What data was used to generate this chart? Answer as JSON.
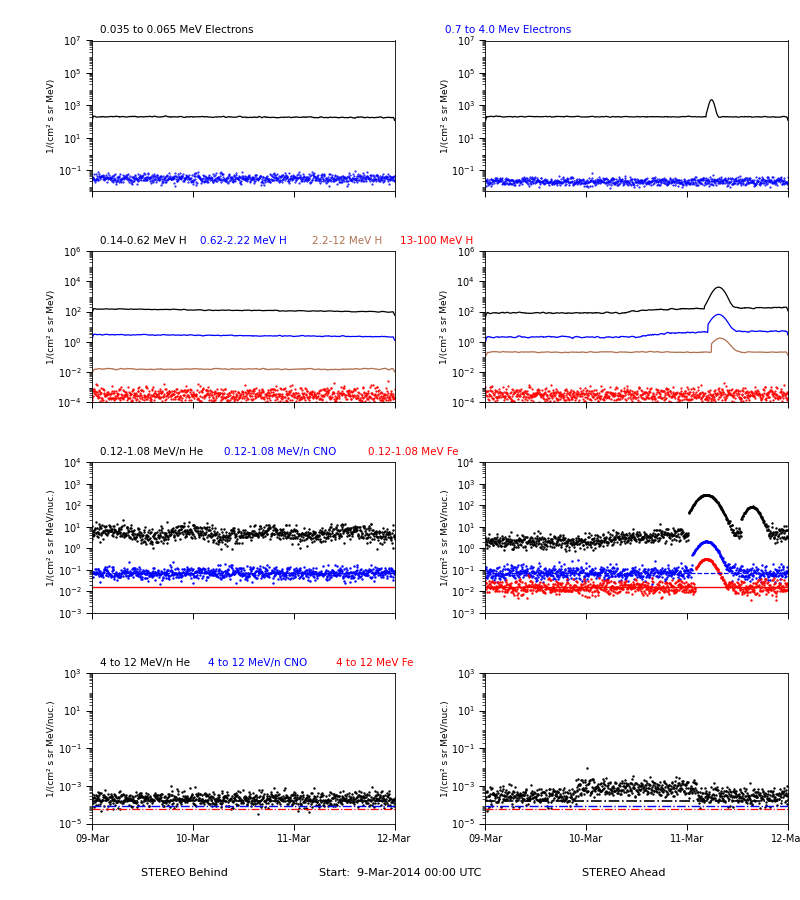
{
  "title_bottom": "Start:  9-Mar-2014 00:00 UTC",
  "label_behind": "STEREO Behind",
  "label_ahead": "STEREO Ahead",
  "background_color": "#ffffff",
  "row0_titles": [
    {
      "text": "0.035 to 0.065 MeV Electrons",
      "color": "black"
    },
    {
      "text": "0.7 to 4.0 Mev Electrons",
      "color": "blue"
    }
  ],
  "row1_titles": [
    {
      "text": "0.14-0.62 MeV H",
      "color": "black"
    },
    {
      "text": "0.62-2.22 MeV H",
      "color": "blue"
    },
    {
      "text": "2.2-12 MeV H",
      "color": "#b07050"
    },
    {
      "text": "13-100 MeV H",
      "color": "red"
    }
  ],
  "row2_titles": [
    {
      "text": "0.12-1.08 MeV/n He",
      "color": "black"
    },
    {
      "text": "0.12-1.08 MeV/n CNO",
      "color": "blue"
    },
    {
      "text": "0.12-1.08 MeV Fe",
      "color": "red"
    }
  ],
  "row3_titles": [
    {
      "text": "4 to 12 MeV/n He",
      "color": "black"
    },
    {
      "text": "4 to 12 MeV/n CNO",
      "color": "blue"
    },
    {
      "text": "4 to 12 MeV Fe",
      "color": "red"
    }
  ],
  "xlabel_ticks": [
    "09-Mar",
    "10-Mar",
    "11-Mar",
    "12-Mar"
  ],
  "ylabel_electrons": "1/(cm² s sr MeV)",
  "ylabel_H": "1/(cm² s sr MeV)",
  "ylabel_heavy": "1/(cm² s sr MeV/nuc.)",
  "brown": "#b07050",
  "seed": 42,
  "n_pts": 864
}
